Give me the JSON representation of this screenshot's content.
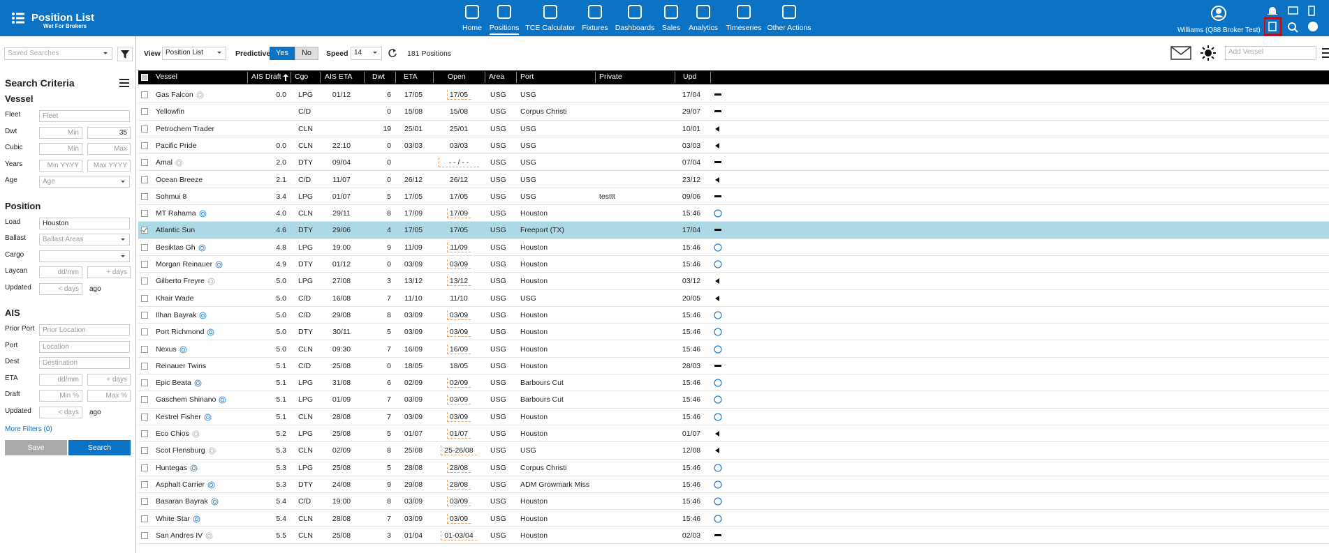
{
  "header": {
    "title": "Position List",
    "subtitle": "Wet For Brokers",
    "nav": [
      "Home",
      "Positions",
      "TCE Calculator",
      "Fixtures",
      "Dashboards",
      "Sales",
      "Analytics",
      "Timeseries",
      "Other Actions"
    ],
    "active_nav": 1,
    "user": "Williams (Q88 Broker Test)"
  },
  "sidebar": {
    "saved_searches": "Saved Searches",
    "title": "Search Criteria",
    "sections": [
      {
        "heading": "Vessel",
        "fields": [
          {
            "label": "Fleet",
            "inputs": [
              {
                "placeholder": "Fleet"
              }
            ]
          },
          {
            "label": "Dwt",
            "inputs": [
              {
                "placeholder": "Min"
              },
              {
                "value": "35"
              }
            ]
          },
          {
            "label": "Cubic",
            "inputs": [
              {
                "placeholder": "Min"
              },
              {
                "placeholder": "Max"
              }
            ]
          },
          {
            "label": "Years",
            "inputs": [
              {
                "placeholder": "Min YYYY"
              },
              {
                "placeholder": "Max YYYY"
              }
            ]
          },
          {
            "label": "Age",
            "inputs": [
              {
                "placeholder": "Age",
                "select": true
              }
            ]
          }
        ]
      },
      {
        "heading": "Position",
        "fields": [
          {
            "label": "Load",
            "inputs": [
              {
                "value": "Houston"
              }
            ]
          },
          {
            "label": "Ballast",
            "inputs": [
              {
                "placeholder": "Ballast Areas",
                "select": true
              }
            ]
          },
          {
            "label": "Cargo",
            "inputs": [
              {
                "select": true
              }
            ]
          },
          {
            "label": "Laycan",
            "inputs": [
              {
                "placeholder": "dd/mm"
              },
              {
                "placeholder": "+ days"
              }
            ]
          },
          {
            "label": "Updated",
            "inputs": [
              {
                "placeholder": "< days"
              }
            ],
            "suffix": "ago"
          }
        ]
      },
      {
        "heading": "AIS",
        "fields": [
          {
            "label": "Prior Port",
            "inputs": [
              {
                "placeholder": "Prior Location"
              }
            ]
          },
          {
            "label": "Port",
            "inputs": [
              {
                "placeholder": "Location"
              }
            ]
          },
          {
            "label": "Dest",
            "inputs": [
              {
                "placeholder": "Destination"
              }
            ]
          },
          {
            "label": "ETA",
            "inputs": [
              {
                "placeholder": "dd/mm"
              },
              {
                "placeholder": "+ days"
              }
            ]
          },
          {
            "label": "Draft",
            "inputs": [
              {
                "placeholder": "Min %"
              },
              {
                "placeholder": "Max %"
              }
            ]
          },
          {
            "label": "Updated",
            "inputs": [
              {
                "placeholder": "< days"
              }
            ],
            "suffix": "ago"
          }
        ]
      }
    ],
    "more_filters": "More Filters (0)",
    "save": "Save",
    "search": "Search"
  },
  "toolbar": {
    "view_label": "View",
    "view": "Position List",
    "predictive_label": "Predictive",
    "yes": "Yes",
    "no": "No",
    "speed_label": "Speed",
    "speed": "14",
    "count": "181 Positions",
    "add_vessel": "Add Vessel"
  },
  "table": {
    "columns": [
      "Vessel",
      "AIS Draft",
      "Cgo",
      "AIS ETA",
      "Dwt",
      "ETA",
      "Open",
      "Area",
      "Port",
      "Private",
      "Upd"
    ],
    "rows": [
      {
        "cells": [
          "Gas Falcon",
          "0.0",
          "LPG",
          "01/12",
          "6",
          "17/05",
          "17/05",
          "USG",
          "USG",
          null,
          "17/04"
        ],
        "icon": "gray",
        "status": "dash",
        "open_flag": true
      },
      {
        "cells": [
          "Yellowfin",
          null,
          "C/D",
          null,
          "0",
          "15/08",
          "15/08",
          "USG",
          "Corpus Christi",
          null,
          "29/07"
        ],
        "status": "dash"
      },
      {
        "cells": [
          "Petrochem Trader",
          null,
          "CLN",
          null,
          "19",
          "25/01",
          "25/01",
          "USG",
          "USG",
          null,
          "10/01"
        ],
        "status": "left"
      },
      {
        "cells": [
          "Pacific Pride",
          "0.0",
          "CLN",
          "22:10",
          "0",
          "03/03",
          "03/03",
          "USG",
          "USG",
          null,
          "03/03"
        ],
        "status": "left"
      },
      {
        "cells": [
          "Amal",
          "2.0",
          "DTY",
          "09/04",
          "0",
          null,
          "- - / - -",
          "USG",
          "USG",
          null,
          "07/04"
        ],
        "icon": "gray",
        "status": "dash",
        "open_flag": true
      },
      {
        "cells": [
          "Ocean Breeze",
          "2.1",
          "C/D",
          "11/07",
          "0",
          "26/12",
          "26/12",
          "USG",
          "USG",
          null,
          "23/12"
        ],
        "status": "left"
      },
      {
        "cells": [
          "Sohmui 8",
          "3.4",
          "LPG",
          "01/07",
          "5",
          "17/05",
          "17/05",
          "USG",
          "USG",
          "testtt",
          "09/06"
        ],
        "status": "dash"
      },
      {
        "cells": [
          "MT Rahama",
          "4.0",
          "CLN",
          "29/11",
          "8",
          "17/09",
          "17/09",
          "USG",
          "Houston",
          null,
          "15:46"
        ],
        "icon": "blue",
        "status": "circle",
        "open_flag": true
      },
      {
        "cells": [
          "Atlantic Sun",
          "4.6",
          "DTY",
          "29/06",
          "4",
          "17/05",
          "17/05",
          "USG",
          "Freeport (TX)",
          null,
          "17/04"
        ],
        "status": "dash",
        "selected": true
      },
      {
        "cells": [
          "Besiktas Gh",
          "4.8",
          "LPG",
          "19:00",
          "9",
          "11/09",
          "11/09",
          "USG",
          "Houston",
          null,
          "15:46"
        ],
        "icon": "blue",
        "status": "circle",
        "open_flag": true
      },
      {
        "cells": [
          "Morgan Reinauer",
          "4.9",
          "DTY",
          "01/12",
          "0",
          "03/09",
          "03/09",
          "USG",
          "Houston",
          null,
          "15:46"
        ],
        "icon": "blue",
        "status": "circle",
        "open_flag": true
      },
      {
        "cells": [
          "Gilberto Freyre",
          "5.0",
          "LPG",
          "27/08",
          "3",
          "13/12",
          "13/12",
          "USG",
          "Houston",
          null,
          "03/12"
        ],
        "icon": "gray",
        "status": "left",
        "open_flag": true
      },
      {
        "cells": [
          "Khair Wade",
          "5.0",
          "C/D",
          "16/08",
          "7",
          "11/10",
          "11/10",
          "USG",
          "USG",
          null,
          "20/05"
        ],
        "status": "left"
      },
      {
        "cells": [
          "Ilhan Bayrak",
          "5.0",
          "C/D",
          "29/08",
          "8",
          "03/09",
          "03/09",
          "USG",
          "Houston",
          null,
          "15:46"
        ],
        "icon": "blue",
        "status": "circle",
        "open_flag": true
      },
      {
        "cells": [
          "Port Richmond",
          "5.0",
          "DTY",
          "30/11",
          "5",
          "03/09",
          "03/09",
          "USG",
          "Houston",
          null,
          "15:46"
        ],
        "icon": "blue",
        "status": "circle",
        "open_flag": true
      },
      {
        "cells": [
          "Nexus",
          "5.0",
          "CLN",
          "09:30",
          "7",
          "16/09",
          "16/09",
          "USG",
          "Houston",
          null,
          "15:46"
        ],
        "icon": "blue",
        "status": "circle",
        "open_flag": true
      },
      {
        "cells": [
          "Reinauer Twins",
          "5.1",
          "C/D",
          "25/08",
          "0",
          "18/05",
          "18/05",
          "USG",
          "Houston",
          null,
          "28/03"
        ],
        "status": "dash"
      },
      {
        "cells": [
          "Epic Beata",
          "5.1",
          "LPG",
          "31/08",
          "6",
          "02/09",
          "02/09",
          "USG",
          "Barbours Cut",
          null,
          "15:46"
        ],
        "icon": "blue",
        "status": "circle",
        "open_flag": true
      },
      {
        "cells": [
          "Gaschem Shinano",
          "5.1",
          "LPG",
          "01/09",
          "7",
          "03/09",
          "03/09",
          "USG",
          "Barbours Cut",
          null,
          "15:46"
        ],
        "icon": "blue",
        "status": "circle",
        "open_flag": true
      },
      {
        "cells": [
          "Kestrel Fisher",
          "5.1",
          "CLN",
          "28/08",
          "7",
          "03/09",
          "03/09",
          "USG",
          "Houston",
          null,
          "15:46"
        ],
        "icon": "blue",
        "status": "circle",
        "open_flag": true
      },
      {
        "cells": [
          "Eco Chios",
          "5.2",
          "LPG",
          "25/08",
          "5",
          "01/07",
          "01/07",
          "USG",
          "Houston",
          null,
          "01/07"
        ],
        "icon": "gray",
        "status": "left",
        "open_flag": true
      },
      {
        "cells": [
          "Scot Flensburg",
          "5.3",
          "CLN",
          "02/09",
          "8",
          "25/08",
          "25-26/08",
          "USG",
          "USG",
          null,
          "12/08"
        ],
        "icon": "gray",
        "status": "left",
        "open_flag": true
      },
      {
        "cells": [
          "Huntegas",
          "5.3",
          "LPG",
          "25/08",
          "5",
          "28/08",
          "28/08",
          "USG",
          "Corpus Christi",
          null,
          "15:46"
        ],
        "icon": "blue",
        "status": "circle",
        "open_flag": true
      },
      {
        "cells": [
          "Asphalt Carrier",
          "5.3",
          "DTY",
          "24/08",
          "9",
          "29/08",
          "28/08",
          "USG",
          "ADM Growmark Miss",
          null,
          "15:46"
        ],
        "icon": "blue",
        "status": "circle",
        "open_flag": true
      },
      {
        "cells": [
          "Basaran Bayrak",
          "5.4",
          "C/D",
          "19:00",
          "8",
          "03/09",
          "03/09",
          "USG",
          "Houston",
          null,
          "15:46"
        ],
        "icon": "blue",
        "status": "circle",
        "open_flag": true
      },
      {
        "cells": [
          "White Star",
          "5.4",
          "CLN",
          "28/08",
          "7",
          "03/09",
          "03/09",
          "USG",
          "Houston",
          null,
          "15:46"
        ],
        "icon": "blue",
        "status": "circle",
        "open_flag": true
      },
      {
        "cells": [
          "San Andres IV",
          "5.5",
          "CLN",
          "25/08",
          "3",
          "01/04",
          "01-03/04",
          "USG",
          "Houston",
          null,
          "02/03"
        ],
        "icon": "gray",
        "status": "dash",
        "open_flag": true
      }
    ]
  }
}
